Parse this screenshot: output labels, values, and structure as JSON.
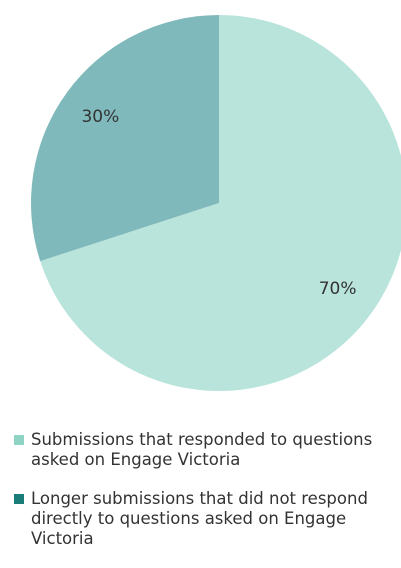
{
  "chart_data": {
    "type": "pie",
    "categories": [
      "Submissions that responded to questions asked on Engage Victoria",
      "Longer submissions that did not respond directly to questions asked on Engage Victoria"
    ],
    "values": [
      70,
      30
    ],
    "value_labels": [
      "70%",
      "30%"
    ],
    "colors": [
      "#b9e4dc",
      "#80b9bc"
    ],
    "legend_colors": [
      "#8fd3c4",
      "#1a7d78"
    ]
  }
}
